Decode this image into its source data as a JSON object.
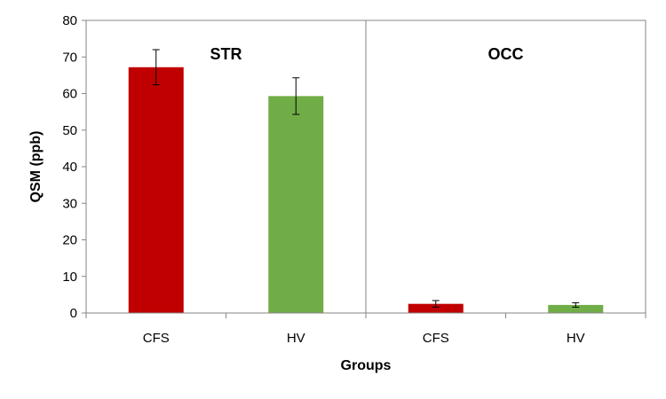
{
  "chart_data": {
    "type": "bar",
    "ylabel": "QSM (ppb)",
    "xlabel": "Groups",
    "ylim": [
      0,
      80
    ],
    "ytick_step": 10,
    "grid": false,
    "legend": "none",
    "panels": [
      {
        "label": "STR",
        "bars": [
          {
            "category": "CFS",
            "value": 67.2,
            "error": 4.8,
            "color": "#c00000"
          },
          {
            "category": "HV",
            "value": 59.3,
            "error": 5.0,
            "color": "#70ad47"
          }
        ]
      },
      {
        "label": "OCC",
        "bars": [
          {
            "category": "CFS",
            "value": 2.5,
            "error": 0.9,
            "color": "#c00000"
          },
          {
            "category": "HV",
            "value": 2.2,
            "error": 0.6,
            "color": "#70ad47"
          }
        ]
      }
    ]
  }
}
